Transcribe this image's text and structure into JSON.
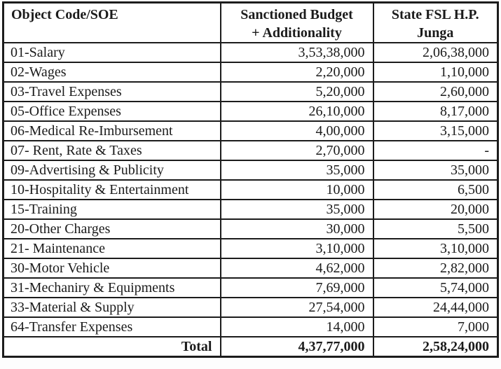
{
  "page": {
    "background": "#fdfdfd",
    "border_color": "#1c1c1c",
    "text_color": "#1b1b1b"
  },
  "table": {
    "headers": {
      "object_code": "Object Code/SOE",
      "sanctioned_line1": "Sanctioned Budget",
      "sanctioned_line2": "+ Additionality",
      "state_fsl_line1": "State FSL H.P.",
      "state_fsl_line2": "Junga"
    },
    "rows": [
      {
        "label": "01-Salary",
        "sanctioned": "3,53,38,000",
        "state_fsl": "2,06,38,000"
      },
      {
        "label": "02-Wages",
        "sanctioned": "2,20,000",
        "state_fsl": "1,10,000"
      },
      {
        "label": "03-Travel Expenses",
        "sanctioned": "5,20,000",
        "state_fsl": "2,60,000"
      },
      {
        "label": "05-Office Expenses",
        "sanctioned": "26,10,000",
        "state_fsl": "8,17,000"
      },
      {
        "label": "06-Medical Re-Imbursement",
        "sanctioned": "4,00,000",
        "state_fsl": "3,15,000"
      },
      {
        "label": "07- Rent, Rate & Taxes",
        "sanctioned": "2,70,000",
        "state_fsl": "-"
      },
      {
        "label": "09-Advertising & Publicity",
        "sanctioned": "35,000",
        "state_fsl": "35,000"
      },
      {
        "label": "10-Hospitality & Entertainment",
        "sanctioned": "10,000",
        "state_fsl": "6,500"
      },
      {
        "label": "15-Training",
        "sanctioned": "35,000",
        "state_fsl": "20,000"
      },
      {
        "label": "20-Other Charges",
        "sanctioned": "30,000",
        "state_fsl": "5,500"
      },
      {
        "label": "21- Maintenance",
        "sanctioned": "3,10,000",
        "state_fsl": "3,10,000"
      },
      {
        "label": "30-Motor Vehicle",
        "sanctioned": "4,62,000",
        "state_fsl": "2,82,000"
      },
      {
        "label": "31-Mechaniry & Equipments",
        "sanctioned": "7,69,000",
        "state_fsl": "5,74,000"
      },
      {
        "label": "33-Material & Supply",
        "sanctioned": "27,54,000",
        "state_fsl": "24,44,000"
      },
      {
        "label": "64-Transfer Expenses",
        "sanctioned": "14,000",
        "state_fsl": "7,000"
      }
    ],
    "total": {
      "label": "Total",
      "sanctioned": "4,37,77,000",
      "state_fsl": "2,58,24,000"
    }
  }
}
